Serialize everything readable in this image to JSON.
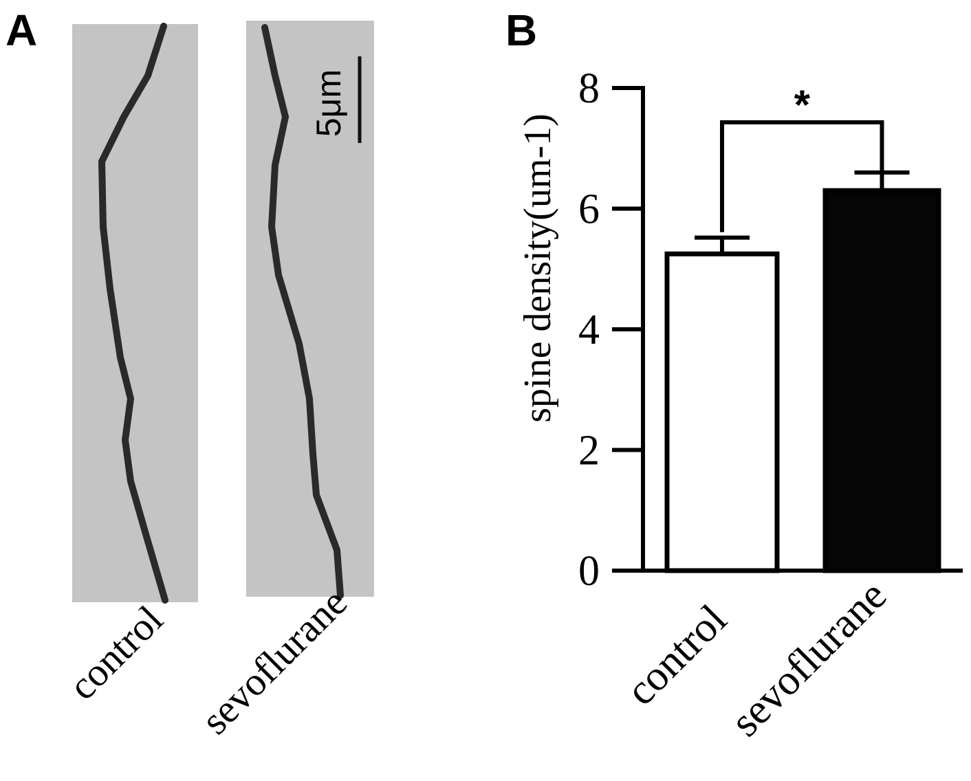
{
  "panel_a": {
    "label": "A",
    "images": [
      "control",
      "sevoflurane"
    ],
    "scale_bar": "5μm"
  },
  "chart_data": {
    "type": "bar",
    "panel_label": "B",
    "ylabel": "spine density(um-1)",
    "categories": [
      "control",
      "sevoflurane"
    ],
    "values": [
      5.25,
      6.3
    ],
    "errors": [
      0.27,
      0.3
    ],
    "colors": [
      "#ffffff",
      "#050505"
    ],
    "edge_color": "#000000",
    "ylim": [
      0,
      8
    ],
    "yticks": [
      0,
      2,
      4,
      6,
      8
    ],
    "annotation": "*"
  }
}
